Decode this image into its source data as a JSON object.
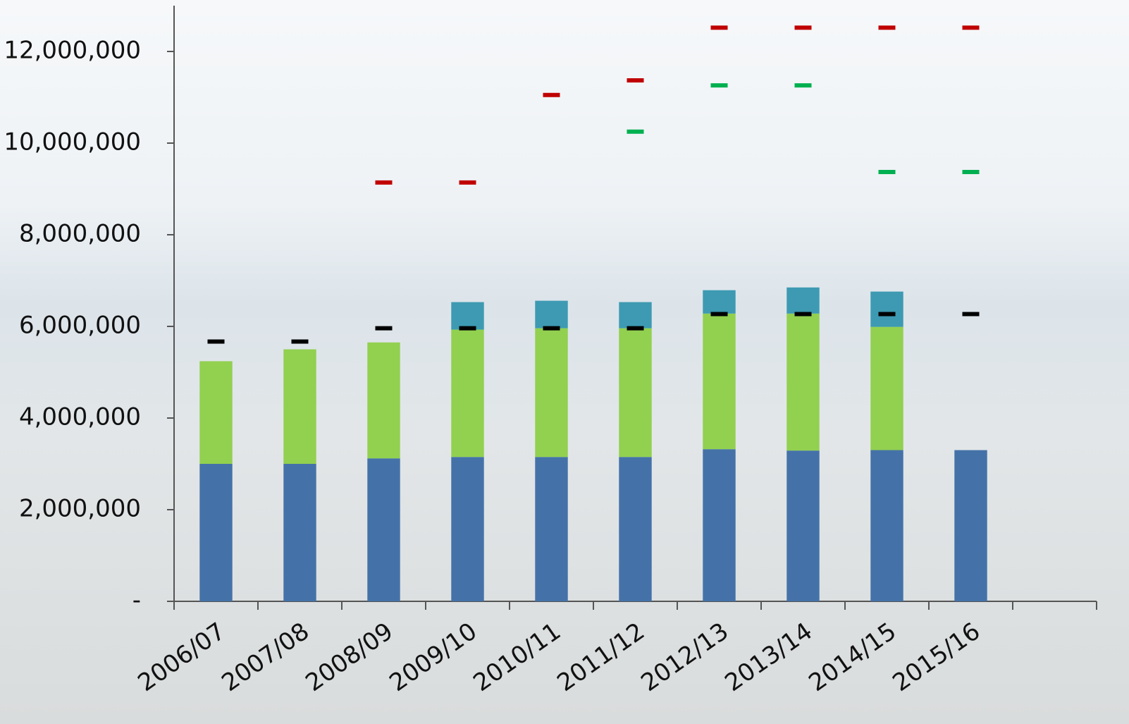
{
  "chart_data": {
    "type": "bar",
    "stacked": true,
    "categories": [
      "2006/07",
      "2007/08",
      "2008/09",
      "2009/10",
      "2010/11",
      "2011/12",
      "2012/13",
      "2013/14",
      "2014/15",
      "2015/16",
      null
    ],
    "series": [
      {
        "type": "bar",
        "color": "#4472a8",
        "values": [
          3000000,
          3000000,
          3120000,
          3150000,
          3150000,
          3150000,
          3320000,
          3290000,
          3300000,
          3300000,
          null
        ]
      },
      {
        "type": "bar",
        "color": "#92d050",
        "values": [
          2240000,
          2500000,
          2530000,
          2780000,
          2810000,
          2810000,
          2960000,
          2990000,
          2690000,
          null,
          null
        ]
      },
      {
        "type": "bar",
        "color": "#3d9ab2",
        "values": [
          null,
          null,
          null,
          600000,
          600000,
          570000,
          510000,
          570000,
          770000,
          null,
          null
        ]
      },
      {
        "type": "marker",
        "color": "#000000",
        "values": [
          5670000,
          5670000,
          5960000,
          5960000,
          5960000,
          5960000,
          6270000,
          6270000,
          6270000,
          6270000,
          null
        ]
      },
      {
        "type": "marker",
        "color": "#00b050",
        "values": [
          null,
          null,
          null,
          null,
          null,
          10250000,
          11260000,
          11260000,
          9370000,
          9370000,
          null
        ]
      },
      {
        "type": "marker",
        "color": "#c00000",
        "values": [
          null,
          null,
          9140000,
          9140000,
          11050000,
          11370000,
          12520000,
          12520000,
          12520000,
          12520000,
          null
        ]
      }
    ],
    "ylim": [
      0,
      13000000
    ],
    "yticks": [
      {
        "value": 0,
        "label": "-"
      },
      {
        "value": 2000000,
        "label": "2,000,000"
      },
      {
        "value": 4000000,
        "label": "4,000,000"
      },
      {
        "value": 6000000,
        "label": "6,000,000"
      },
      {
        "value": 8000000,
        "label": "8,000,000"
      },
      {
        "value": 10000000,
        "label": "10,000,000"
      },
      {
        "value": 12000000,
        "label": "12,000,000"
      }
    ],
    "grid": false
  }
}
